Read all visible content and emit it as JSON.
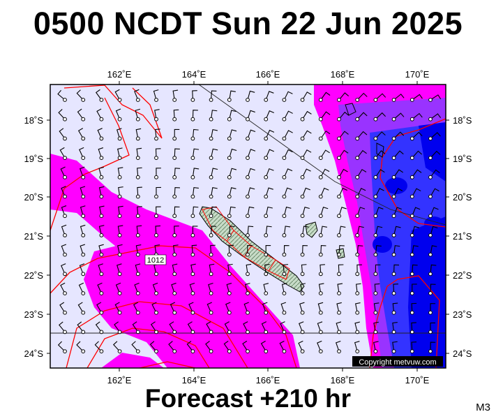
{
  "header": {
    "title": "0500 NCDT Sun 22 Jun 2025"
  },
  "footer": {
    "forecast": "Forecast +210 hr",
    "code": "M3"
  },
  "map": {
    "top_longitude_labels": [
      "162˚E",
      "164˚E",
      "166˚E",
      "168˚E",
      "170˚E"
    ],
    "bottom_longitude_labels": [
      "162˚E",
      "164˚E",
      "166˚E",
      "168˚E",
      "170˚E"
    ],
    "left_latitude_labels": [
      "18˚S",
      "19˚S",
      "20˚S",
      "21˚S",
      "22˚S",
      "23˚S",
      "24˚S"
    ],
    "right_latitude_labels": [
      "18˚S",
      "19˚S",
      "20˚S",
      "21˚S",
      "22˚S",
      "23˚S",
      "24˚S"
    ],
    "isobar_label": "1012",
    "copyright": "Copyright metvuw.com",
    "colors": {
      "background": "#e6e6ff",
      "rain_light": "#ff00ff",
      "rain_medium": "#9933ff",
      "rain_heavy": "#3333ff",
      "rain_very_heavy": "#0000ee",
      "isobar": "#ff0000",
      "land": "#c8dcc8"
    }
  }
}
